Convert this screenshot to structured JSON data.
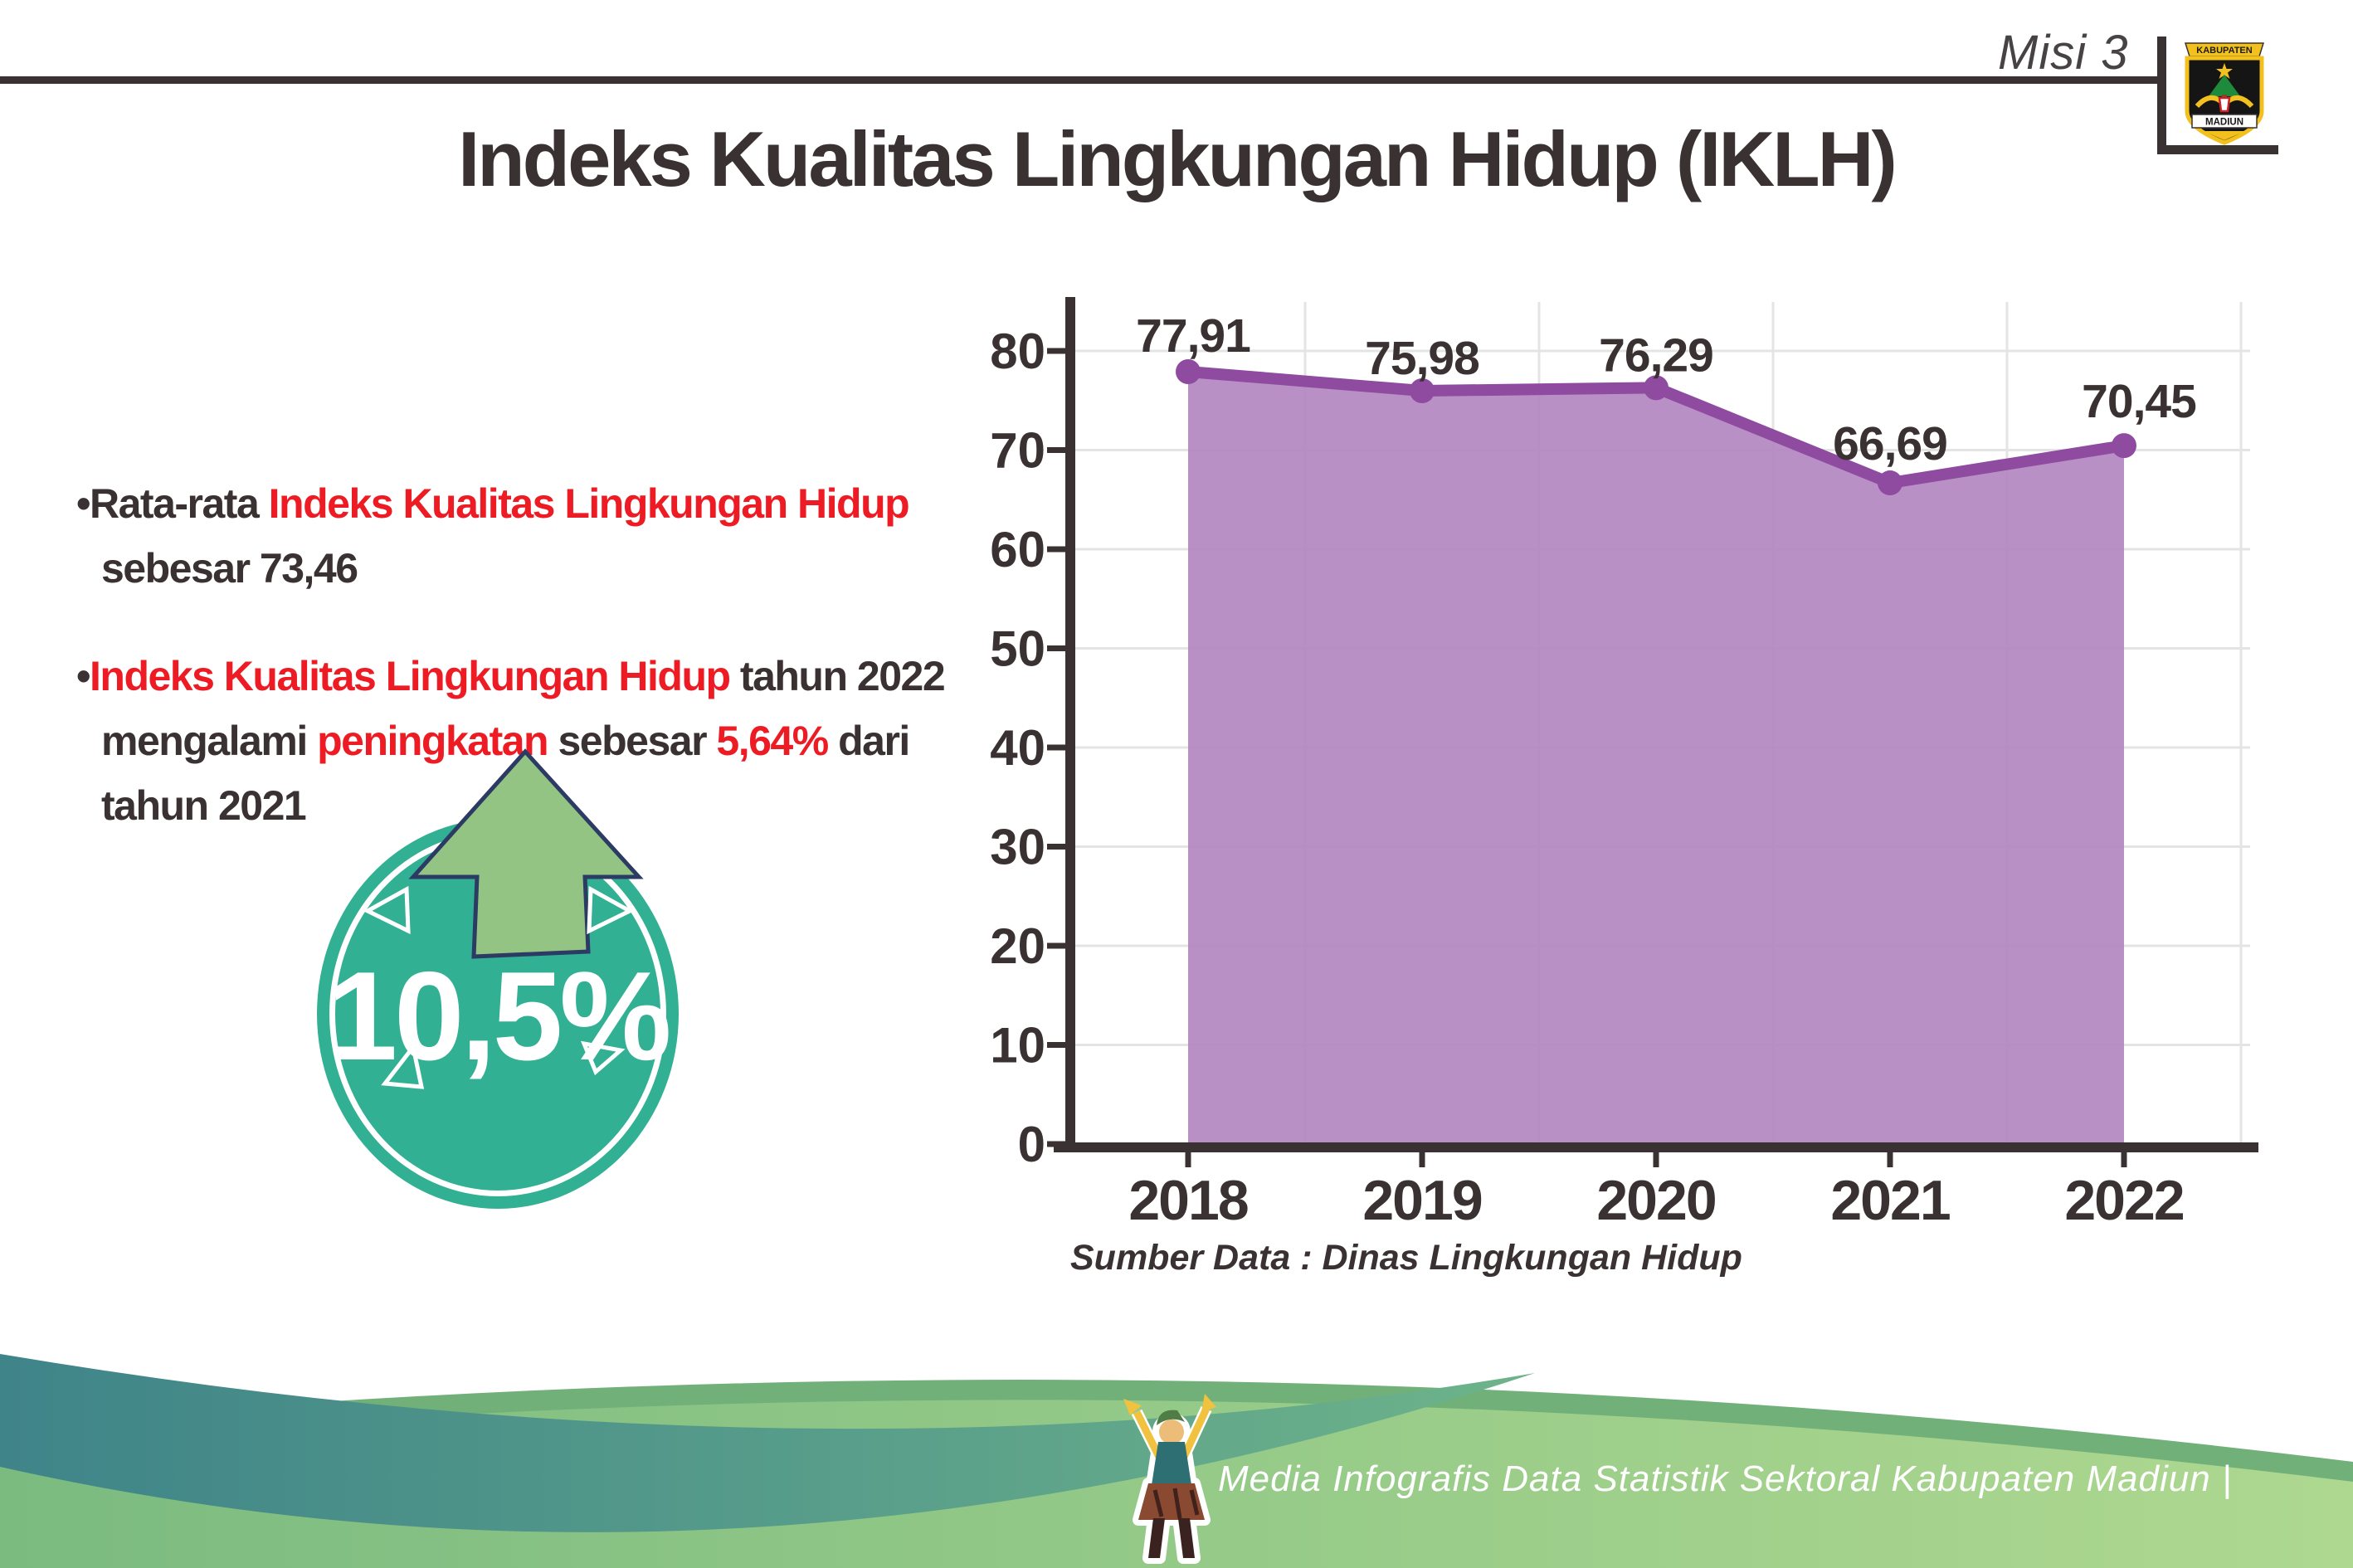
{
  "header": {
    "misi_label": "Misi 3"
  },
  "logo": {
    "top_text": "KABUPATEN",
    "bottom_text": "MADIUN"
  },
  "title": "Indeks Kualitas Lingkungan Hidup (IKLH)",
  "bullets": [
    {
      "lines": [
        [
          {
            "t": "•Rata-rata ",
            "c": "dark"
          },
          {
            "t": "Indeks Kualitas Lingkungan Hidup",
            "c": "red"
          }
        ],
        [
          {
            "t": "sebesar 73,46",
            "c": "dark"
          }
        ]
      ]
    },
    {
      "lines": [
        [
          {
            "t": "•",
            "c": "dark"
          },
          {
            "t": "Indeks Kualitas Lingkungan Hidup",
            "c": "red"
          },
          {
            "t": " tahun 2022",
            "c": "dark"
          }
        ],
        [
          {
            "t": "mengalami ",
            "c": "dark"
          },
          {
            "t": "peningkatan",
            "c": "red"
          },
          {
            "t": " sebesar ",
            "c": "dark"
          },
          {
            "t": "5,64%",
            "c": "red"
          },
          {
            "t": " dari",
            "c": "dark"
          }
        ],
        [
          {
            "t": "tahun 2021",
            "c": "dark"
          }
        ]
      ]
    }
  ],
  "badge": {
    "value": "10,5%",
    "direction": "up"
  },
  "chart_data": {
    "type": "area",
    "categories": [
      "2018",
      "2019",
      "2020",
      "2021",
      "2022"
    ],
    "values": [
      77.91,
      75.98,
      76.29,
      66.69,
      70.45
    ],
    "value_labels": [
      "77,91",
      "75,98",
      "76,29",
      "66,69",
      "70,45"
    ],
    "yticks": [
      0,
      10,
      20,
      30,
      40,
      50,
      60,
      70,
      80
    ],
    "ylim": [
      0,
      80
    ],
    "grid": true,
    "legend": false,
    "line_color": "#8e4ba0",
    "fill_color": "#b287c0"
  },
  "source_note": "Sumber Data : Dinas Lingkungan Hidup",
  "footer": {
    "text": "Media Infografis Data Statistik Sektoral Kabupaten Madiun |"
  },
  "colors": {
    "dark": "#3a3132",
    "red": "#ed1c24",
    "badge_teal": "#31b093",
    "arrow_green": "#94c483",
    "arrow_outline": "#2c3b63",
    "axis": "#3a3132",
    "gridline": "#e4e4e4",
    "wave_teal_start": "#3f8489",
    "wave_teal_end": "#6db38a",
    "wave_rim": "#72b07a",
    "wave_green_start": "#7bbb80",
    "wave_green_end": "#aed890",
    "footer_text": "#ffffff"
  }
}
